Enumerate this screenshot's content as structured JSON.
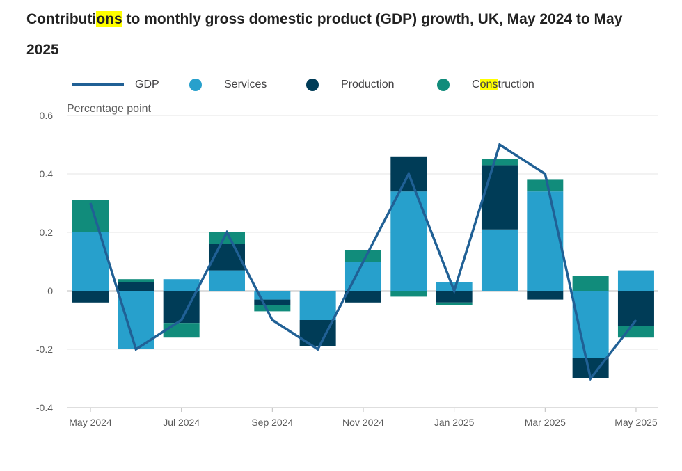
{
  "chart_data": {
    "type": "bar",
    "stacked": true,
    "title_parts": [
      {
        "text": "Contributi",
        "highlight": false
      },
      {
        "text": "ons",
        "highlight": true
      },
      {
        "text": " to monthly gross domestic product (GDP) growth, UK, May 2024 to May 2025",
        "highlight": false
      }
    ],
    "ylabel": "Percentage point",
    "ylim": [
      -0.4,
      0.6
    ],
    "yticks": [
      -0.4,
      -0.2,
      0,
      0.2,
      0.4,
      0.6
    ],
    "ytick_labels": [
      "-0.4",
      "-0.2",
      "0",
      "0.2",
      "0.4",
      "0.6"
    ],
    "categories": [
      "May 2024",
      "Jun 2024",
      "Jul 2024",
      "Aug 2024",
      "Sep 2024",
      "Oct 2024",
      "Nov 2024",
      "Dec 2024",
      "Jan 2025",
      "Feb 2025",
      "Mar 2025",
      "Apr 2025",
      "May 2025"
    ],
    "xtick_labels": [
      "May 2024",
      "",
      "Jul 2024",
      "",
      "Sep 2024",
      "",
      "Nov 2024",
      "",
      "Jan 2025",
      "",
      "Mar 2025",
      "",
      "May 2025"
    ],
    "series": [
      {
        "name": "Services",
        "color": "#27a0cc",
        "kind": "bar",
        "values": [
          0.2,
          -0.2,
          0.04,
          0.07,
          -0.03,
          -0.1,
          0.1,
          0.34,
          0.03,
          0.21,
          0.34,
          -0.23,
          0.07
        ]
      },
      {
        "name": "Production",
        "color": "#003c57",
        "kind": "bar",
        "values": [
          -0.04,
          0.03,
          -0.11,
          0.09,
          -0.02,
          -0.09,
          -0.04,
          0.12,
          -0.04,
          0.22,
          -0.03,
          -0.07,
          -0.12
        ]
      },
      {
        "name": "Construction",
        "color": "#118c7b",
        "kind": "bar",
        "values": [
          0.11,
          0.01,
          -0.05,
          0.04,
          -0.02,
          0.0,
          0.04,
          -0.02,
          -0.01,
          0.02,
          0.04,
          0.05,
          -0.04
        ]
      },
      {
        "name": "GDP",
        "color": "#206095",
        "kind": "line",
        "values": [
          0.3,
          -0.2,
          -0.1,
          0.2,
          -0.1,
          -0.2,
          0.1,
          0.4,
          0.0,
          0.5,
          0.4,
          -0.3,
          -0.1
        ]
      }
    ],
    "legend": {
      "gdp_label": "GDP",
      "services_label": "Services",
      "production_label": "Production",
      "construction_pre": "C",
      "construction_hl": "ons",
      "construction_post": "truction"
    },
    "legend_position": "top",
    "grid": true
  }
}
